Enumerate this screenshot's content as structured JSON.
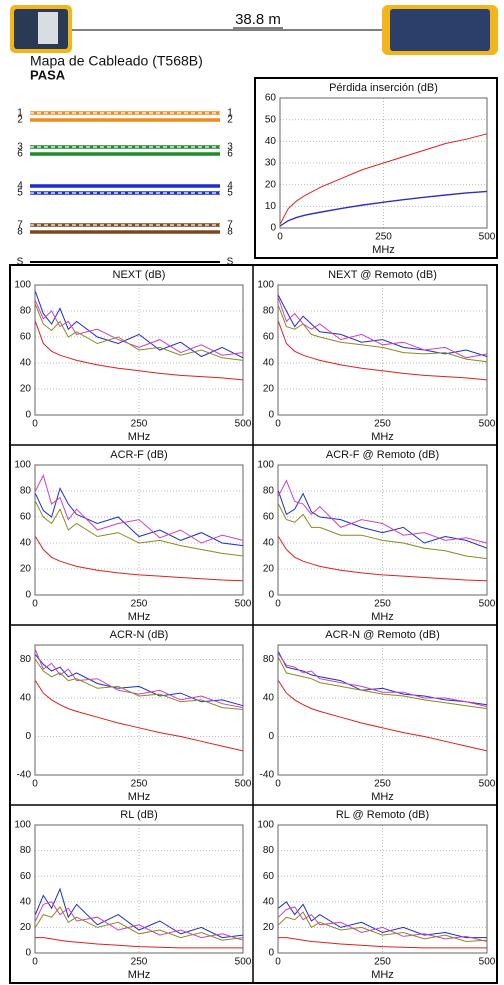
{
  "header": {
    "length": "38.8 m"
  },
  "wiremap": {
    "title": "Mapa de Cableado (T568B)",
    "status": "PASA",
    "pins": [
      {
        "left": "1",
        "right": "1",
        "color": "#f08c1e",
        "striped": true
      },
      {
        "left": "2",
        "right": "2",
        "color": "#f08c1e",
        "striped": false
      },
      {
        "left": "3",
        "right": "3",
        "color": "#1e8c2a",
        "striped": true
      },
      {
        "left": "6",
        "right": "6",
        "color": "#1e8c2a",
        "striped": false
      },
      {
        "left": "4",
        "right": "4",
        "color": "#1a2fd0",
        "striped": false
      },
      {
        "left": "5",
        "right": "5",
        "color": "#1a2fd0",
        "striped": true
      },
      {
        "left": "7",
        "right": "7",
        "color": "#7a4a1e",
        "striped": true
      },
      {
        "left": "8",
        "right": "8",
        "color": "#7a4a1e",
        "striped": false
      },
      {
        "left": "S",
        "right": "S",
        "color": "#000000",
        "striped": false
      }
    ]
  },
  "chart_data": [
    {
      "type": "line",
      "title": "Pérdida inserción (dB)",
      "xlabel": "MHz",
      "x": [
        1,
        20,
        40,
        60,
        80,
        100,
        150,
        200,
        250,
        300,
        350,
        400,
        450,
        500
      ],
      "xlim": [
        0,
        500
      ],
      "xticks": [
        0,
        250,
        500
      ],
      "ylim": [
        0,
        60
      ],
      "yticks": [
        0,
        10,
        20,
        30,
        40,
        50,
        60
      ],
      "grid": true,
      "series": [
        {
          "color": "#e02020",
          "values": [
            2,
            9,
            12.5,
            15,
            17,
            19,
            23,
            27,
            30,
            33,
            36,
            39,
            41,
            43.5
          ]
        },
        {
          "color": "#7a2fa0",
          "values": [
            1,
            3.5,
            5,
            6,
            6.8,
            7.5,
            9.2,
            10.7,
            12,
            13.2,
            14.3,
            15.3,
            16.3,
            17
          ]
        },
        {
          "color": "#1a2fd0",
          "values": [
            1,
            3.3,
            4.8,
            5.8,
            6.6,
            7.3,
            9,
            10.5,
            11.8,
            13,
            14.1,
            15.1,
            16.1,
            16.8
          ]
        }
      ]
    },
    {
      "type": "line",
      "title": "NEXT (dB)",
      "xlabel": "MHz",
      "x": [
        1,
        20,
        40,
        60,
        80,
        100,
        150,
        200,
        250,
        300,
        350,
        400,
        450,
        500
      ],
      "xlim": [
        0,
        500
      ],
      "xticks": [
        0,
        250,
        500
      ],
      "ylim": [
        0,
        100
      ],
      "yticks": [
        0,
        20,
        40,
        60,
        80,
        100
      ],
      "grid": true,
      "series": [
        {
          "color": "#e02020",
          "values": [
            72,
            55,
            49,
            46,
            44,
            42,
            38.5,
            36,
            34,
            32,
            30.5,
            29.5,
            28.5,
            27
          ]
        },
        {
          "color": "#1a2fd0",
          "values": [
            95,
            78,
            70,
            82,
            66,
            72,
            60,
            55,
            62,
            50,
            56,
            45,
            52,
            44
          ]
        },
        {
          "color": "#d040c0",
          "values": [
            88,
            74,
            80,
            68,
            72,
            62,
            66,
            58,
            52,
            58,
            48,
            54,
            46,
            48
          ]
        },
        {
          "color": "#8a8a20",
          "values": [
            85,
            70,
            65,
            72,
            60,
            64,
            55,
            60,
            50,
            52,
            46,
            50,
            44,
            42
          ]
        }
      ]
    },
    {
      "type": "line",
      "title": "NEXT @ Remoto (dB)",
      "xlabel": "MHz",
      "x": [
        1,
        20,
        40,
        60,
        80,
        100,
        150,
        200,
        250,
        300,
        350,
        400,
        450,
        500
      ],
      "xlim": [
        0,
        500
      ],
      "xticks": [
        0,
        250,
        500
      ],
      "ylim": [
        0,
        100
      ],
      "yticks": [
        0,
        20,
        40,
        60,
        80,
        100
      ],
      "grid": true,
      "series": [
        {
          "color": "#e02020",
          "values": [
            72,
            55,
            49,
            46,
            44,
            42,
            38.5,
            36,
            34,
            32,
            30.5,
            29.5,
            28.5,
            27
          ]
        },
        {
          "color": "#1a2fd0",
          "values": [
            92,
            80,
            68,
            76,
            70,
            64,
            62,
            56,
            58,
            52,
            50,
            47,
            50,
            45
          ]
        },
        {
          "color": "#d040c0",
          "values": [
            90,
            72,
            78,
            70,
            66,
            70,
            58,
            62,
            54,
            56,
            50,
            52,
            44,
            47
          ]
        },
        {
          "color": "#8a8a20",
          "values": [
            84,
            68,
            66,
            70,
            62,
            60,
            56,
            54,
            52,
            48,
            47,
            48,
            43,
            41
          ]
        }
      ]
    },
    {
      "type": "line",
      "title": "ACR-F (dB)",
      "xlabel": "MHz",
      "x": [
        1,
        20,
        40,
        60,
        80,
        100,
        150,
        200,
        250,
        300,
        350,
        400,
        450,
        500
      ],
      "xlim": [
        0,
        500
      ],
      "xticks": [
        0,
        250,
        500
      ],
      "ylim": [
        0,
        100
      ],
      "yticks": [
        0,
        20,
        40,
        60,
        80,
        100
      ],
      "grid": true,
      "series": [
        {
          "color": "#e02020",
          "values": [
            45,
            35,
            29,
            26,
            24,
            22,
            19,
            17,
            15.5,
            14.5,
            13.5,
            12.5,
            11.5,
            11
          ]
        },
        {
          "color": "#1a2fd0",
          "values": [
            78,
            65,
            60,
            82,
            70,
            62,
            55,
            60,
            45,
            50,
            42,
            48,
            40,
            38
          ]
        },
        {
          "color": "#d040c0",
          "values": [
            80,
            92,
            70,
            75,
            58,
            66,
            50,
            55,
            58,
            44,
            50,
            40,
            46,
            42
          ]
        },
        {
          "color": "#8a8a20",
          "values": [
            72,
            60,
            55,
            66,
            50,
            55,
            45,
            48,
            40,
            42,
            38,
            35,
            32,
            30
          ]
        }
      ]
    },
    {
      "type": "line",
      "title": "ACR-F @ Remoto (dB)",
      "xlabel": "MHz",
      "x": [
        1,
        20,
        40,
        60,
        80,
        100,
        150,
        200,
        250,
        300,
        350,
        400,
        450,
        500
      ],
      "xlim": [
        0,
        500
      ],
      "xticks": [
        0,
        250,
        500
      ],
      "ylim": [
        0,
        100
      ],
      "yticks": [
        0,
        20,
        40,
        60,
        80,
        100
      ],
      "grid": true,
      "series": [
        {
          "color": "#e02020",
          "values": [
            45,
            35,
            29,
            26,
            24,
            22,
            19,
            17,
            15.5,
            14.5,
            13.5,
            12.5,
            11.5,
            11
          ]
        },
        {
          "color": "#1a2fd0",
          "values": [
            80,
            62,
            66,
            78,
            64,
            60,
            58,
            52,
            48,
            52,
            40,
            45,
            42,
            36
          ]
        },
        {
          "color": "#d040c0",
          "values": [
            76,
            88,
            72,
            70,
            62,
            68,
            52,
            58,
            55,
            46,
            48,
            42,
            44,
            40
          ]
        },
        {
          "color": "#8a8a20",
          "values": [
            70,
            58,
            56,
            62,
            52,
            52,
            46,
            46,
            42,
            40,
            36,
            34,
            30,
            28
          ]
        }
      ]
    },
    {
      "type": "line",
      "title": "ACR-N (dB)",
      "xlabel": "MHz",
      "x": [
        1,
        20,
        40,
        60,
        80,
        100,
        150,
        200,
        250,
        300,
        350,
        400,
        450,
        500
      ],
      "xlim": [
        0,
        500
      ],
      "xticks": [
        0,
        250,
        500
      ],
      "ylim": [
        -40,
        95
      ],
      "yticks": [
        -40,
        0,
        40,
        80
      ],
      "grid": true,
      "series": [
        {
          "color": "#e02020",
          "values": [
            58,
            45,
            38,
            33,
            29,
            26,
            20,
            14,
            9,
            4,
            0,
            -5,
            -10,
            -15
          ]
        },
        {
          "color": "#1a2fd0",
          "values": [
            85,
            75,
            68,
            72,
            62,
            66,
            55,
            50,
            52,
            42,
            45,
            36,
            38,
            32
          ]
        },
        {
          "color": "#d040c0",
          "values": [
            90,
            70,
            76,
            64,
            70,
            58,
            60,
            48,
            44,
            48,
            38,
            42,
            34,
            30
          ]
        },
        {
          "color": "#8a8a20",
          "values": [
            80,
            68,
            62,
            66,
            58,
            60,
            50,
            52,
            42,
            44,
            36,
            38,
            30,
            28
          ]
        }
      ]
    },
    {
      "type": "line",
      "title": "ACR-N @ Remoto (dB)",
      "xlabel": "MHz",
      "x": [
        1,
        20,
        40,
        60,
        80,
        100,
        150,
        200,
        250,
        300,
        350,
        400,
        450,
        500
      ],
      "xlim": [
        0,
        500
      ],
      "xticks": [
        0,
        250,
        500
      ],
      "ylim": [
        -40,
        95
      ],
      "yticks": [
        -40,
        0,
        40,
        80
      ],
      "grid": true,
      "series": [
        {
          "color": "#e02020",
          "values": [
            58,
            45,
            38,
            33,
            29,
            26,
            20,
            14,
            9,
            4,
            0,
            -5,
            -10,
            -15
          ]
        },
        {
          "color": "#1a2fd0",
          "values": [
            88,
            72,
            70,
            68,
            64,
            62,
            58,
            48,
            50,
            44,
            42,
            38,
            36,
            33
          ]
        },
        {
          "color": "#d040c0",
          "values": [
            86,
            74,
            72,
            66,
            68,
            60,
            56,
            52,
            46,
            46,
            40,
            40,
            36,
            31
          ]
        },
        {
          "color": "#8a8a20",
          "values": [
            82,
            66,
            64,
            62,
            60,
            56,
            52,
            48,
            44,
            42,
            38,
            35,
            32,
            29
          ]
        }
      ]
    },
    {
      "type": "line",
      "title": "RL (dB)",
      "xlabel": "MHz",
      "x": [
        1,
        20,
        40,
        60,
        80,
        100,
        150,
        200,
        250,
        300,
        350,
        400,
        450,
        500
      ],
      "xlim": [
        0,
        500
      ],
      "xticks": [
        0,
        250,
        500
      ],
      "ylim": [
        0,
        100
      ],
      "yticks": [
        0,
        20,
        40,
        60,
        80,
        100
      ],
      "grid": true,
      "series": [
        {
          "color": "#e02020",
          "values": [
            12,
            12,
            11,
            10,
            9,
            8.5,
            7,
            6,
            5,
            4.5,
            4,
            4,
            4,
            4
          ]
        },
        {
          "color": "#1a2fd0",
          "values": [
            30,
            45,
            35,
            50,
            28,
            38,
            22,
            30,
            18,
            25,
            15,
            20,
            12,
            14
          ]
        },
        {
          "color": "#d040c0",
          "values": [
            25,
            38,
            40,
            30,
            35,
            25,
            28,
            18,
            22,
            14,
            18,
            12,
            15,
            10
          ]
        },
        {
          "color": "#8a8a20",
          "values": [
            20,
            30,
            28,
            36,
            24,
            28,
            20,
            24,
            15,
            18,
            12,
            16,
            10,
            12
          ]
        }
      ]
    },
    {
      "type": "line",
      "title": "RL @ Remoto (dB)",
      "xlabel": "MHz",
      "x": [
        1,
        20,
        40,
        60,
        80,
        100,
        150,
        200,
        250,
        300,
        350,
        400,
        450,
        500
      ],
      "xlim": [
        0,
        500
      ],
      "xticks": [
        0,
        250,
        500
      ],
      "ylim": [
        0,
        100
      ],
      "yticks": [
        0,
        20,
        40,
        60,
        80,
        100
      ],
      "grid": true,
      "series": [
        {
          "color": "#e02020",
          "values": [
            12,
            12,
            11,
            10,
            9,
            8.5,
            7,
            6,
            5,
            4.5,
            4,
            4,
            4,
            4
          ]
        },
        {
          "color": "#1a2fd0",
          "values": [
            35,
            40,
            30,
            38,
            25,
            30,
            20,
            24,
            16,
            20,
            14,
            16,
            12,
            12
          ]
        },
        {
          "color": "#d040c0",
          "values": [
            28,
            34,
            36,
            26,
            30,
            22,
            24,
            16,
            20,
            13,
            15,
            11,
            13,
            9
          ]
        },
        {
          "color": "#8a8a20",
          "values": [
            22,
            28,
            26,
            32,
            20,
            24,
            18,
            20,
            14,
            16,
            11,
            14,
            9,
            10
          ]
        }
      ]
    }
  ]
}
